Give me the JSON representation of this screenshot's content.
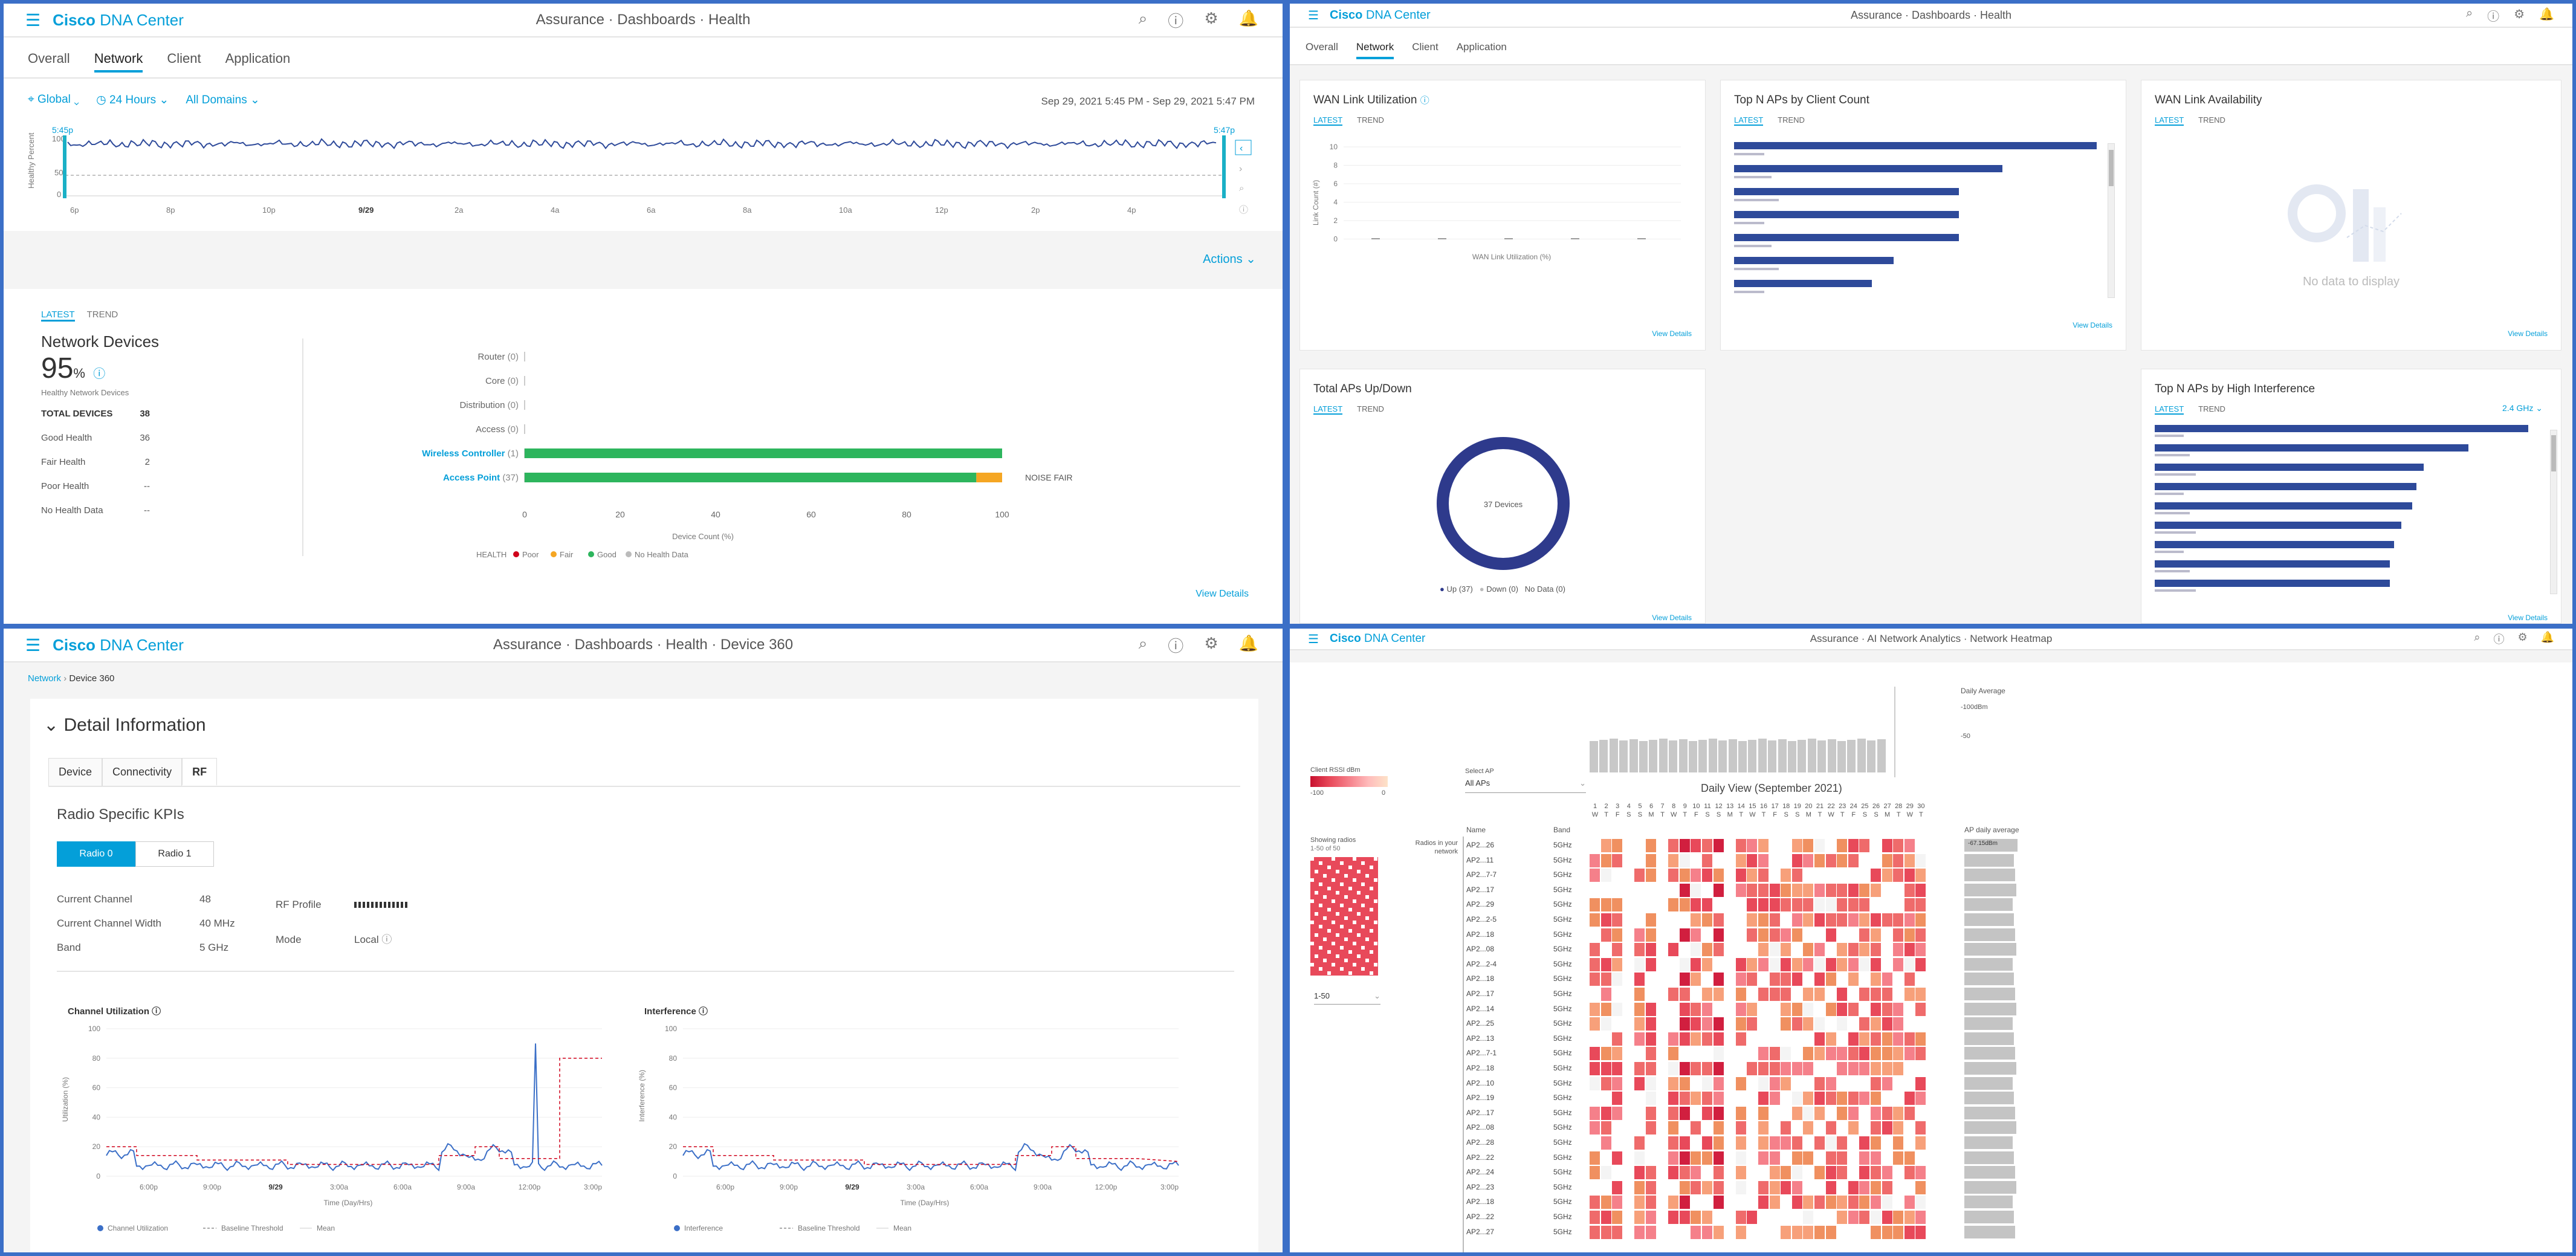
{
  "app": {
    "brand": "Cisco",
    "brand_suffix": "DNA Center"
  },
  "q1": {
    "breadcrumb": "Assurance · Dashboards · Health",
    "tabs": [
      {
        "label": "Overall"
      },
      {
        "label": "Network"
      },
      {
        "label": "Client"
      },
      {
        "label": "Application"
      }
    ],
    "filters": {
      "location": "Global",
      "time": "24 Hours",
      "domains": "All Domains"
    },
    "time_range": "Sep 29, 2021 5:45 PM - Sep 29, 2021 5:47 PM",
    "timeline": {
      "start": "5:45p",
      "end": "5:47p",
      "ylabel": "Healthy Percent",
      "yticks": [
        "100",
        "50",
        "0"
      ],
      "xticks": [
        "6p",
        "8p",
        "10p",
        "9/29",
        "2a",
        "4a",
        "6a",
        "8a",
        "10a",
        "12p",
        "2p",
        "4p"
      ]
    },
    "actions": "Actions",
    "view_toggle": {
      "latest": "LATEST",
      "trend": "TREND"
    },
    "summary": {
      "title": "Network Devices",
      "percent": "95",
      "percent_unit": "%",
      "sub": "Healthy Network Devices",
      "rows": [
        {
          "label": "TOTAL DEVICES",
          "value": "38"
        },
        {
          "label": "Good Health",
          "value": "36"
        },
        {
          "label": "Fair Health",
          "value": "2"
        },
        {
          "label": "Poor Health",
          "value": "--"
        },
        {
          "label": "No Health Data",
          "value": "--"
        }
      ]
    },
    "device_chart": {
      "categories": [
        {
          "label": "Router",
          "count": "(0)"
        },
        {
          "label": "Core",
          "count": "(0)"
        },
        {
          "label": "Distribution",
          "count": "(0)"
        },
        {
          "label": "Access",
          "count": "(0)"
        },
        {
          "label": "Wireless Controller",
          "count": "(1)"
        },
        {
          "label": "Access Point",
          "count": "(37)"
        }
      ],
      "xticks": [
        "0",
        "20",
        "40",
        "60",
        "80",
        "100"
      ],
      "xlabel": "Device Count (%)",
      "noise_label": "NOISE FAIR",
      "legend": {
        "title": "HEALTH",
        "poor": "Poor",
        "fair": "Fair",
        "good": "Good",
        "nodata": "No Health Data"
      },
      "colors": {
        "good": "#2db55d",
        "fair": "#f5a623",
        "poor": "#d0021b",
        "nodata": "#bbbbbb"
      }
    },
    "view_details": "View Details"
  },
  "q2": {
    "breadcrumb": "Assurance · Dashboards · Health",
    "tabs": [
      {
        "label": "Overall"
      },
      {
        "label": "Network"
      },
      {
        "label": "Client"
      },
      {
        "label": "Application"
      }
    ],
    "wan_util": {
      "title": "WAN Link Utilization",
      "latest": "LATEST",
      "trend": "TREND",
      "yticks": [
        "10",
        "8",
        "6",
        "4",
        "2",
        "0"
      ],
      "ylabel": "Link Count (#)",
      "xlabel": "WAN Link Utilization (%)",
      "view": "View Details"
    },
    "top_aps": {
      "title": "Top N APs by Client Count",
      "latest": "LATEST",
      "trend": "TREND",
      "view": "View Details"
    },
    "wan_avail": {
      "title": "WAN Link Availability",
      "latest": "LATEST",
      "trend": "TREND",
      "nodata": "No data to display",
      "view": "View Details"
    },
    "aps_updown": {
      "title": "Total APs Up/Down",
      "latest": "LATEST",
      "trend": "TREND",
      "center": "37 Devices",
      "legend_up": "Up (37)",
      "legend_down": "Down (0)",
      "legend_nodata": "No Data (0)",
      "view": "View Details"
    },
    "interference": {
      "title": "Top N APs by High Interference",
      "latest": "LATEST",
      "trend": "TREND",
      "band": "2.4 GHz",
      "view": "View Details"
    }
  },
  "q3": {
    "breadcrumb": "Assurance · Dashboards · Health · Device 360",
    "nav": {
      "parent": "Network",
      "current": "Device 360"
    },
    "section": "Detail Information",
    "tabs": [
      {
        "label": "Device"
      },
      {
        "label": "Connectivity"
      },
      {
        "label": "RF"
      }
    ],
    "kpi_title": "Radio Specific KPIs",
    "radios": {
      "r0": "Radio 0",
      "r1": "Radio 1"
    },
    "fields": {
      "channel_label": "Current Channel",
      "channel_value": "48",
      "width_label": "Current Channel Width",
      "width_value": "40 MHz",
      "band_label": "Band",
      "band_value": "5 GHz",
      "profile_label": "RF Profile",
      "mode_label": "Mode",
      "mode_value": "Local"
    },
    "util_chart": {
      "title": "Channel Utilization",
      "ylabel": "Utilization (%)",
      "yticks": [
        "100",
        "80",
        "60",
        "40",
        "20",
        "0"
      ],
      "xticks": [
        "6:00p",
        "9:00p",
        "9/29",
        "3:00a",
        "6:00a",
        "9:00a",
        "12:00p",
        "3:00p"
      ],
      "xlabel": "Time (Day/Hrs)",
      "legend": {
        "a": "Channel Utilization",
        "b": "Baseline Threshold",
        "c": "Mean"
      }
    },
    "intf_chart": {
      "title": "Interference",
      "ylabel": "Interference (%)",
      "yticks": [
        "100",
        "80",
        "60",
        "40",
        "20",
        "0"
      ],
      "xticks": [
        "6:00p",
        "9:00p",
        "9/29",
        "3:00a",
        "6:00a",
        "9:00a",
        "12:00p",
        "3:00p"
      ],
      "xlabel": "Time (Day/Hrs)",
      "legend": {
        "a": "Interference",
        "b": "Baseline Threshold",
        "c": "Mean"
      }
    }
  },
  "q4": {
    "breadcrumb": "Assurance · AI Network Analytics · Network Heatmap",
    "daily_average": "Daily Average",
    "scale_top": "-100dBm",
    "scale_mid": "-50",
    "rssi_label": "Client RSSI dBm",
    "rssi_min": "-100",
    "rssi_max": "0",
    "select_ap_label": "Select AP",
    "select_ap_value": "All APs",
    "view_title": "Daily View (September 2021)",
    "showing": "Showing radios",
    "showing_range": "1-50 of 50",
    "pager": "1-50",
    "radios_note": "Radios in your network",
    "col_name": "Name",
    "col_band": "Band",
    "ap_avg_label": "AP daily average",
    "ap_avg_value": "-67.15dBm",
    "days": [
      "1",
      "2",
      "3",
      "4",
      "5",
      "6",
      "7",
      "8",
      "9",
      "10",
      "11",
      "12",
      "13",
      "14",
      "15",
      "16",
      "17",
      "18",
      "19",
      "20",
      "21",
      "22",
      "23",
      "24",
      "25",
      "26",
      "27",
      "28",
      "29",
      "30"
    ],
    "weekdays": [
      "W",
      "T",
      "F",
      "S",
      "S",
      "M",
      "T",
      "W",
      "T",
      "F",
      "S",
      "S",
      "M",
      "T",
      "W",
      "T",
      "F",
      "S",
      "S",
      "M",
      "T",
      "W",
      "T",
      "F",
      "S",
      "S",
      "M",
      "T",
      "W",
      "T"
    ],
    "rows": [
      {
        "name": "AP2...26",
        "band": "5GHz"
      },
      {
        "name": "AP2...11",
        "band": "5GHz"
      },
      {
        "name": "AP2...7-7",
        "band": "5GHz"
      },
      {
        "name": "AP2...17",
        "band": "5GHz"
      },
      {
        "name": "AP2...29",
        "band": "5GHz"
      },
      {
        "name": "AP2...2-5",
        "band": "5GHz"
      },
      {
        "name": "AP2...18",
        "band": "5GHz"
      },
      {
        "name": "AP2...08",
        "band": "5GHz"
      },
      {
        "name": "AP2...2-4",
        "band": "5GHz"
      },
      {
        "name": "AP2...18",
        "band": "5GHz"
      },
      {
        "name": "AP2...17",
        "band": "5GHz"
      },
      {
        "name": "AP2...14",
        "band": "5GHz"
      },
      {
        "name": "AP2...25",
        "band": "5GHz"
      },
      {
        "name": "AP2...13",
        "band": "5GHz"
      },
      {
        "name": "AP2...7-1",
        "band": "5GHz"
      },
      {
        "name": "AP2...18",
        "band": "5GHz"
      },
      {
        "name": "AP2...10",
        "band": "5GHz"
      },
      {
        "name": "AP2...19",
        "band": "5GHz"
      },
      {
        "name": "AP2...17",
        "band": "5GHz"
      },
      {
        "name": "AP2...08",
        "band": "5GHz"
      },
      {
        "name": "AP2...28",
        "band": "5GHz"
      },
      {
        "name": "AP2...22",
        "band": "5GHz"
      },
      {
        "name": "AP2...24",
        "band": "5GHz"
      },
      {
        "name": "AP2...23",
        "band": "5GHz"
      },
      {
        "name": "AP2...18",
        "band": "5GHz"
      },
      {
        "name": "AP2...22",
        "band": "5GHz"
      },
      {
        "name": "AP2...27",
        "band": "5GHz"
      }
    ]
  }
}
